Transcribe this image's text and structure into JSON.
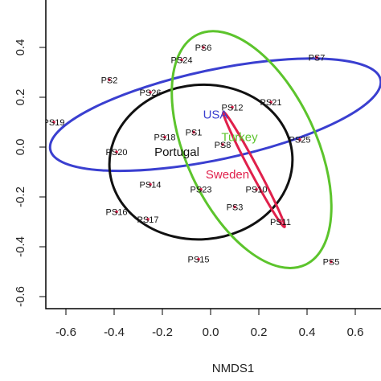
{
  "chart_data": {
    "type": "scatter",
    "title": "",
    "xlabel": "NMDS1",
    "ylabel": "",
    "xlim": [
      -0.67,
      0.68
    ],
    "ylim": [
      -0.64,
      0.53
    ],
    "grid": false,
    "legend": "none",
    "x_ticks": [
      -0.6,
      -0.4,
      -0.2,
      0.0,
      0.2,
      0.4,
      0.6
    ],
    "y_ticks": [
      -0.6,
      -0.4,
      -0.2,
      0.0,
      0.2,
      0.4
    ],
    "x_tick_labels": [
      "-0.6",
      "-0.4",
      "-0.2",
      "0.0",
      "0.2",
      "0.4",
      "0.6"
    ],
    "y_tick_labels": [
      "-0.6",
      "-0.4",
      "-0.2",
      "0.0",
      "0.2",
      "0.4"
    ],
    "points": [
      {
        "label": "PS1",
        "x": -0.07,
        "y": 0.06
      },
      {
        "label": "PS2",
        "x": -0.42,
        "y": 0.27
      },
      {
        "label": "PS3",
        "x": 0.1,
        "y": -0.24
      },
      {
        "label": "PS5",
        "x": 0.5,
        "y": -0.46
      },
      {
        "label": "PS6",
        "x": -0.03,
        "y": 0.4
      },
      {
        "label": "PS7",
        "x": 0.44,
        "y": 0.36
      },
      {
        "label": "PS8",
        "x": 0.05,
        "y": 0.01
      },
      {
        "label": "PS10",
        "x": 0.19,
        "y": -0.17
      },
      {
        "label": "PS11",
        "x": 0.29,
        "y": -0.3
      },
      {
        "label": "PS12",
        "x": 0.09,
        "y": 0.16
      },
      {
        "label": "PS14",
        "x": -0.25,
        "y": -0.15
      },
      {
        "label": "PS15",
        "x": -0.05,
        "y": -0.45
      },
      {
        "label": "PS16",
        "x": -0.39,
        "y": -0.26
      },
      {
        "label": "PS17",
        "x": -0.26,
        "y": -0.29
      },
      {
        "label": "PS18",
        "x": -0.19,
        "y": 0.04
      },
      {
        "label": "PS19",
        "x": -0.65,
        "y": 0.1
      },
      {
        "label": "PS20",
        "x": -0.39,
        "y": -0.02
      },
      {
        "label": "PS21",
        "x": 0.25,
        "y": 0.18
      },
      {
        "label": "PS23",
        "x": -0.04,
        "y": -0.17
      },
      {
        "label": "PS24",
        "x": -0.12,
        "y": 0.35
      },
      {
        "label": "PS25",
        "x": 0.37,
        "y": 0.03
      },
      {
        "label": "PS26",
        "x": -0.25,
        "y": 0.22
      }
    ],
    "series": [
      {
        "name": "USA",
        "color": "#3a3fd0",
        "label_pos": [
          0.02,
          0.13
        ],
        "ellipse": {
          "cx": 0.02,
          "cy": 0.13,
          "rx": 0.7,
          "ry": 0.18,
          "angle": 12
        }
      },
      {
        "name": "Portugal",
        "color": "#111111",
        "label_pos": [
          -0.14,
          -0.02
        ],
        "ellipse": {
          "cx": -0.04,
          "cy": -0.06,
          "rx": 0.38,
          "ry": 0.31,
          "angle": 5
        }
      },
      {
        "name": "Turkey",
        "color": "#5cc42c",
        "label_pos": [
          0.12,
          0.04
        ],
        "ellipse": {
          "cx": 0.17,
          "cy": -0.01,
          "rx": 0.27,
          "ry": 0.51,
          "angle": 25
        }
      },
      {
        "name": "Sweden",
        "color": "#e0204b",
        "label_pos": [
          0.07,
          -0.11
        ],
        "ellipse": {
          "cx": 0.18,
          "cy": -0.09,
          "rx": 0.27,
          "ry": 0.016,
          "angle": -62
        }
      }
    ]
  }
}
